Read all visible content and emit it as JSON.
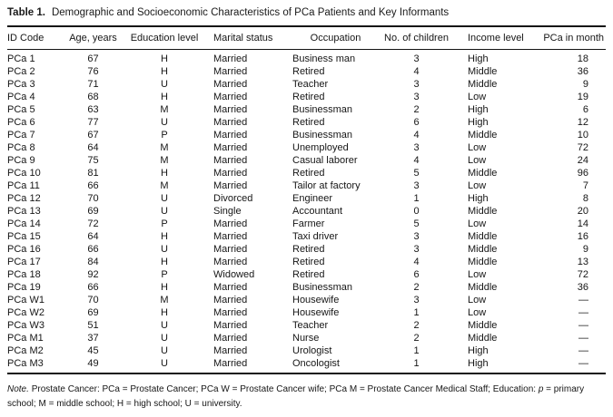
{
  "title": {
    "label": "Table 1.",
    "text": "Demographic and Socioeconomic Characteristics of PCa Patients and Key Informants"
  },
  "table": {
    "columns": [
      "ID Code",
      "Age, years",
      "Education level",
      "Marital status",
      "Occupation",
      "No. of children",
      "Income level",
      "PCa in month"
    ],
    "rows": [
      [
        "PCa 1",
        "67",
        "H",
        "Married",
        "Business man",
        "3",
        "High",
        "18"
      ],
      [
        "PCa 2",
        "76",
        "H",
        "Married",
        "Retired",
        "4",
        "Middle",
        "36"
      ],
      [
        "PCa 3",
        "71",
        "U",
        "Married",
        "Teacher",
        "3",
        "Middle",
        "9"
      ],
      [
        "PCa 4",
        "68",
        "H",
        "Married",
        "Retired",
        "3",
        "Low",
        "19"
      ],
      [
        "PCa 5",
        "63",
        "M",
        "Married",
        "Businessman",
        "2",
        "High",
        "6"
      ],
      [
        "PCa 6",
        "77",
        "U",
        "Married",
        "Retired",
        "6",
        "High",
        "12"
      ],
      [
        "PCa 7",
        "67",
        "P",
        "Married",
        "Businessman",
        "4",
        "Middle",
        "10"
      ],
      [
        "PCa 8",
        "64",
        "M",
        "Married",
        "Unemployed",
        "3",
        "Low",
        "72"
      ],
      [
        "PCa 9",
        "75",
        "M",
        "Married",
        "Casual laborer",
        "4",
        "Low",
        "24"
      ],
      [
        "PCa 10",
        "81",
        "H",
        "Married",
        "Retired",
        "5",
        "Middle",
        "96"
      ],
      [
        "PCa 11",
        "66",
        "M",
        "Married",
        "Tailor at factory",
        "3",
        "Low",
        "7"
      ],
      [
        "PCa 12",
        "70",
        "U",
        "Divorced",
        "Engineer",
        "1",
        "High",
        "8"
      ],
      [
        "PCa 13",
        "69",
        "U",
        "Single",
        "Accountant",
        "0",
        "Middle",
        "20"
      ],
      [
        "PCa 14",
        "72",
        "P",
        "Married",
        "Farmer",
        "5",
        "Low",
        "14"
      ],
      [
        "PCa 15",
        "64",
        "H",
        "Married",
        "Taxi driver",
        "3",
        "Middle",
        "16"
      ],
      [
        "PCa 16",
        "66",
        "U",
        "Married",
        "Retired",
        "3",
        "Middle",
        "9"
      ],
      [
        "PCa 17",
        "84",
        "H",
        "Married",
        "Retired",
        "4",
        "Middle",
        "13"
      ],
      [
        "PCa 18",
        "92",
        "P",
        "Widowed",
        "Retired",
        "6",
        "Low",
        "72"
      ],
      [
        "PCa 19",
        "66",
        "H",
        "Married",
        "Businessman",
        "2",
        "Middle",
        "36"
      ],
      [
        "PCa W1",
        "70",
        "M",
        "Married",
        "Housewife",
        "3",
        "Low",
        "—"
      ],
      [
        "PCa W2",
        "69",
        "H",
        "Married",
        "Housewife",
        "1",
        "Low",
        "—"
      ],
      [
        "PCa W3",
        "51",
        "U",
        "Married",
        "Teacher",
        "2",
        "Middle",
        "—"
      ],
      [
        "PCa M1",
        "37",
        "U",
        "Married",
        "Nurse",
        "2",
        "Middle",
        "—"
      ],
      [
        "PCa M2",
        "45",
        "U",
        "Married",
        "Urologist",
        "1",
        "High",
        "—"
      ],
      [
        "PCa M3",
        "49",
        "U",
        "Married",
        "Oncologist",
        "1",
        "High",
        "—"
      ]
    ]
  },
  "footnote": {
    "segments": [
      {
        "text": "Note. ",
        "style": "italic"
      },
      {
        "text": "Prostate Cancer: PCa = Prostate Cancer; PCa W = Prostate Cancer wife; PCa M = Prostate Cancer Medical Staff; Education: ",
        "style": "normal"
      },
      {
        "text": "p",
        "style": "italic"
      },
      {
        "text": " = primary school; M = middle school; H = high school; U = university.",
        "style": "normal"
      }
    ]
  }
}
